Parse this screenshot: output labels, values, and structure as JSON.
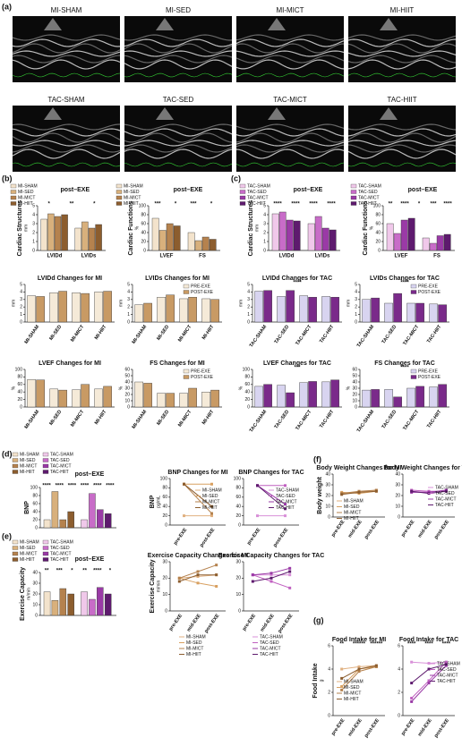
{
  "panel_labels": [
    "(a)",
    "(b)",
    "(c)",
    "(d)",
    "(e)",
    "(f)",
    "(g)"
  ],
  "echo_images": [
    "MI-SHAM",
    "MI-SED",
    "MI-MICT",
    "MI-HIIT",
    "TAC-SHAM",
    "TAC-SED",
    "TAC-MICT",
    "TAC-HIIT"
  ],
  "chart_data": [
    {
      "type": "bar",
      "title": "post–EXE",
      "ylabel": "Cardiac Structures",
      "yunit": "mm",
      "categories": [
        "LVIDd",
        "LVIDs"
      ],
      "ylim": [
        0,
        5
      ],
      "yticks": [
        0,
        1,
        2,
        3,
        4,
        5
      ],
      "annotations": [
        "*",
        "**",
        "*"
      ],
      "series": [
        {
          "name": "MI-SHAM",
          "color": "#f3e3cc",
          "values": [
            3.5,
            2.5
          ]
        },
        {
          "name": "MI-SED",
          "color": "#d8b07c",
          "values": [
            4.1,
            3.2
          ]
        },
        {
          "name": "MI-MICT",
          "color": "#b5824e",
          "values": [
            3.8,
            2.5
          ]
        },
        {
          "name": "MI-HIIT",
          "color": "#8c5d2e",
          "values": [
            4.0,
            2.9
          ]
        }
      ]
    },
    {
      "type": "bar",
      "title": "post–EXE",
      "ylabel": "Cardiac Functions",
      "yunit": "%",
      "categories": [
        "LVEF",
        "FS"
      ],
      "ylim": [
        0,
        100
      ],
      "yticks": [
        0,
        20,
        40,
        60,
        80,
        100
      ],
      "annotations": [
        "***",
        "*",
        "***",
        "*"
      ],
      "series": [
        {
          "name": "MI-SHAM",
          "color": "#f3e3cc",
          "values": [
            72,
            40
          ]
        },
        {
          "name": "MI-SED",
          "color": "#d8b07c",
          "values": [
            45,
            22
          ]
        },
        {
          "name": "MI-MICT",
          "color": "#b5824e",
          "values": [
            60,
            30
          ]
        },
        {
          "name": "MI-HIIT",
          "color": "#8c5d2e",
          "values": [
            55,
            25
          ]
        }
      ]
    },
    {
      "type": "bar",
      "title": "post–EXE",
      "ylabel": "Cardiac Structures",
      "yunit": "mm",
      "categories": [
        "LVIDd",
        "LVIDs"
      ],
      "ylim": [
        0,
        5
      ],
      "yticks": [
        0,
        1,
        2,
        3,
        4,
        5
      ],
      "annotations": [
        "****",
        "****",
        "****",
        "****"
      ],
      "series": [
        {
          "name": "TAC-SHAM",
          "color": "#f0c8ea",
          "values": [
            4.1,
            3.0
          ]
        },
        {
          "name": "TAC-SED",
          "color": "#c86cc8",
          "values": [
            4.3,
            3.8
          ]
        },
        {
          "name": "TAC-MICT",
          "color": "#9a3aa6",
          "values": [
            3.4,
            2.5
          ]
        },
        {
          "name": "TAC-HIIT",
          "color": "#5e1a6e",
          "values": [
            3.3,
            2.3
          ]
        }
      ]
    },
    {
      "type": "bar",
      "title": "post–EXE",
      "ylabel": "Cardiac Functions",
      "yunit": "%",
      "categories": [
        "LVEF",
        "FS"
      ],
      "ylim": [
        0,
        100
      ],
      "yticks": [
        0,
        20,
        40,
        60,
        80,
        100
      ],
      "annotations": [
        "**",
        "****",
        "*",
        "***",
        "****"
      ],
      "series": [
        {
          "name": "TAC-SHAM",
          "color": "#f0c8ea",
          "values": [
            60,
            28
          ]
        },
        {
          "name": "TAC-SED",
          "color": "#c86cc8",
          "values": [
            38,
            16
          ]
        },
        {
          "name": "TAC-MICT",
          "color": "#9a3aa6",
          "values": [
            68,
            33
          ]
        },
        {
          "name": "TAC-HIIT",
          "color": "#5e1a6e",
          "values": [
            72,
            36
          ]
        }
      ]
    },
    {
      "type": "bar",
      "title": "LVIDd Changes for MI",
      "yunit": "mm",
      "categories": [
        "MI-SHAM",
        "MI-SED",
        "MI-MICT",
        "MI-HIIT"
      ],
      "ylim": [
        0,
        5
      ],
      "yticks": [
        0,
        1,
        2,
        3,
        4,
        5
      ],
      "series": [
        {
          "name": "PRE-EXE",
          "color": "#f5ead8",
          "values": [
            3.5,
            3.9,
            3.9,
            4.0
          ]
        },
        {
          "name": "POST-EXE",
          "color": "#c89a64",
          "values": [
            3.4,
            4.1,
            3.8,
            4.1
          ]
        }
      ]
    },
    {
      "type": "bar",
      "title": "LVIDs Changes for MI",
      "yunit": "mm",
      "categories": [
        "MI-SHAM",
        "MI-SED",
        "MI-MICT",
        "MI-HIIT"
      ],
      "ylim": [
        0,
        5
      ],
      "yticks": [
        0,
        1,
        2,
        3,
        4,
        5
      ],
      "series": [
        {
          "name": "PRE-EXE",
          "color": "#f5ead8",
          "values": [
            2.3,
            3.3,
            3.1,
            3.1
          ]
        },
        {
          "name": "POST-EXE",
          "color": "#c89a64",
          "values": [
            2.5,
            3.6,
            3.3,
            3.0
          ]
        }
      ]
    },
    {
      "type": "bar",
      "title": "LVIDd Changes for TAC",
      "yunit": "mm",
      "categories": [
        "TAC-SHAM",
        "TAC-SED",
        "TAC-MICT",
        "TAC-HIIT"
      ],
      "ylim": [
        0,
        5
      ],
      "yticks": [
        0,
        1,
        2,
        3,
        4,
        5
      ],
      "annotations": [
        "****"
      ],
      "series": [
        {
          "name": "PRE-EXE",
          "color": "#d8d4f0",
          "values": [
            4.1,
            3.4,
            3.5,
            3.4
          ]
        },
        {
          "name": "POST-EXE",
          "color": "#7a2a8a",
          "values": [
            4.2,
            4.2,
            3.3,
            3.3
          ]
        }
      ]
    },
    {
      "type": "bar",
      "title": "LVIDs Changes for TAC",
      "yunit": "mm",
      "categories": [
        "TAC-SHAM",
        "TAC-SED",
        "TAC-MICT",
        "TAC-HIIT"
      ],
      "ylim": [
        0,
        5
      ],
      "yticks": [
        0,
        1,
        2,
        3,
        4,
        5
      ],
      "annotations": [
        "****"
      ],
      "series": [
        {
          "name": "PRE-EXE",
          "color": "#d8d4f0",
          "values": [
            3.0,
            2.5,
            2.5,
            2.4
          ]
        },
        {
          "name": "POST-EXE",
          "color": "#7a2a8a",
          "values": [
            3.2,
            3.8,
            2.5,
            2.3
          ]
        }
      ]
    },
    {
      "type": "bar",
      "title": "LVEF Changes for MI",
      "yunit": "%",
      "categories": [
        "MI-SHAM",
        "MI-SED",
        "MI-MICT",
        "MI-HIIT"
      ],
      "ylim": [
        0,
        100
      ],
      "yticks": [
        0,
        20,
        40,
        60,
        80,
        100
      ],
      "series": [
        {
          "name": "PRE-EXE",
          "color": "#f5ead8",
          "values": [
            73,
            48,
            46,
            48
          ]
        },
        {
          "name": "POST-EXE",
          "color": "#c89a64",
          "values": [
            72,
            45,
            60,
            55
          ]
        }
      ]
    },
    {
      "type": "bar",
      "title": "FS Changes for MI",
      "yunit": "%",
      "categories": [
        "MI-SHAM",
        "MI-SED",
        "MI-MICT",
        "MI-HIIT"
      ],
      "ylim": [
        0,
        60
      ],
      "yticks": [
        0,
        10,
        20,
        30,
        40,
        50,
        60
      ],
      "series": [
        {
          "name": "PRE-EXE",
          "color": "#f5ead8",
          "values": [
            40,
            22,
            22,
            24
          ]
        },
        {
          "name": "POST-EXE",
          "color": "#c89a64",
          "values": [
            38,
            22,
            30,
            27
          ]
        }
      ]
    },
    {
      "type": "bar",
      "title": "LVEF Changes for TAC",
      "yunit": "%",
      "categories": [
        "TAC-SHAM",
        "TAC-SED",
        "TAC-MICT",
        "TAC-HIIT"
      ],
      "ylim": [
        0,
        100
      ],
      "yticks": [
        0,
        20,
        40,
        60,
        80,
        100
      ],
      "annotations": [
        "***"
      ],
      "series": [
        {
          "name": "PRE-EXE",
          "color": "#d8d4f0",
          "values": [
            55,
            58,
            65,
            67
          ]
        },
        {
          "name": "POST-EXE",
          "color": "#7a2a8a",
          "values": [
            60,
            38,
            68,
            72
          ]
        }
      ]
    },
    {
      "type": "bar",
      "title": "FS Changes for TAC",
      "yunit": "%",
      "categories": [
        "TAC-SHAM",
        "TAC-SED",
        "TAC-MICT",
        "TAC-HIIT"
      ],
      "ylim": [
        0,
        60
      ],
      "yticks": [
        0,
        10,
        20,
        30,
        40,
        50,
        60
      ],
      "annotations": [
        "****"
      ],
      "series": [
        {
          "name": "PRE-EXE",
          "color": "#d8d4f0",
          "values": [
            27,
            28,
            30,
            32
          ]
        },
        {
          "name": "POST-EXE",
          "color": "#7a2a8a",
          "values": [
            28,
            16,
            33,
            36
          ]
        }
      ]
    },
    {
      "type": "bar",
      "title": "post–EXE",
      "ylabel": "BNP",
      "categories": [
        "MI-SHAM",
        "MI-SED",
        "MI-MICT",
        "MI-HIIT",
        "TAC-SHAM",
        "TAC-SED",
        "TAC-MICT",
        "TAC-HIIT"
      ],
      "values": [
        20,
        90,
        20,
        40,
        20,
        85,
        45,
        35
      ],
      "colors": [
        "#f3e3cc",
        "#d8b07c",
        "#b5824e",
        "#8c5d2e",
        "#f0c8ea",
        "#c86cc8",
        "#9a3aa6",
        "#5e1a6e"
      ],
      "ylim": [
        0,
        100
      ],
      "yticks": [
        0,
        20,
        40,
        60,
        80,
        100
      ],
      "annotations": [
        "****",
        "****",
        "****",
        "****",
        "****",
        "****"
      ]
    },
    {
      "type": "line",
      "title": "BNP Changes for MI",
      "ylabel": "BNP",
      "yunit": "pg/mL",
      "categories": [
        "pre-EXE",
        "post-EXE"
      ],
      "ylim": [
        0,
        100
      ],
      "yticks": [
        0,
        20,
        40,
        60,
        80,
        100
      ],
      "series": [
        {
          "name": "MI-SHAM",
          "color": "#e0b080",
          "values": [
            20,
            20
          ]
        },
        {
          "name": "MI-SED",
          "color": "#d8a060",
          "values": [
            88,
            88
          ]
        },
        {
          "name": "MI-MICT",
          "color": "#b5824e",
          "values": [
            88,
            25
          ]
        },
        {
          "name": "MI-HIIT",
          "color": "#8c5d2e",
          "values": [
            88,
            40
          ]
        }
      ]
    },
    {
      "type": "line",
      "title": "BNP Changes for TAC",
      "categories": [
        "pre-EXE",
        "post-EXE"
      ],
      "ylim": [
        0,
        100
      ],
      "yticks": [
        0,
        20,
        40,
        60,
        80,
        100
      ],
      "series": [
        {
          "name": "TAC-SHAM",
          "color": "#d890d8",
          "values": [
            20,
            20
          ]
        },
        {
          "name": "TAC-SED",
          "color": "#c060c0",
          "values": [
            85,
            85
          ]
        },
        {
          "name": "TAC-MICT",
          "color": "#9a3aa6",
          "values": [
            85,
            45
          ]
        },
        {
          "name": "TAC-HIIT",
          "color": "#5e1a6e",
          "values": [
            85,
            35
          ]
        }
      ]
    },
    {
      "type": "line",
      "title": "Body Weight Changes for MI",
      "ylabel": "Body weight",
      "categories": [
        "pre-EXE",
        "mid-EXE",
        "post-EXE"
      ],
      "ylim": [
        0,
        40
      ],
      "yticks": [
        0,
        10,
        20,
        30,
        40
      ],
      "series": [
        {
          "name": "MI-SHAM",
          "color": "#e0b080",
          "values": [
            22,
            23,
            25
          ]
        },
        {
          "name": "MI-SED",
          "color": "#d8a060",
          "values": [
            23,
            22,
            24
          ]
        },
        {
          "name": "MI-MICT",
          "color": "#b5824e",
          "values": [
            22,
            24,
            25
          ]
        },
        {
          "name": "MI-HIIT",
          "color": "#8c5d2e",
          "values": [
            21,
            23,
            24
          ]
        }
      ]
    },
    {
      "type": "line",
      "title": "Body Weight Changes for TAC",
      "categories": [
        "pre-EXE",
        "mid-EXE",
        "post-EXE"
      ],
      "ylim": [
        0,
        40
      ],
      "yticks": [
        0,
        10,
        20,
        30,
        40
      ],
      "series": [
        {
          "name": "TAC-SHAM",
          "color": "#d890d8",
          "values": [
            24,
            23,
            25
          ]
        },
        {
          "name": "TAC-SED",
          "color": "#c060c0",
          "values": [
            25,
            24,
            24
          ]
        },
        {
          "name": "TAC-MICT",
          "color": "#9a3aa6",
          "values": [
            23,
            23,
            25
          ]
        },
        {
          "name": "TAC-HIIT",
          "color": "#5e1a6e",
          "values": [
            24,
            22,
            24
          ]
        }
      ]
    },
    {
      "type": "bar",
      "title": "post–EXE",
      "ylabel": "Exercise Capacity",
      "yunit": "m/min",
      "categories": [
        "MI-SHAM",
        "MI-SED",
        "MI-MICT",
        "MI-HIIT",
        "TAC-SHAM",
        "TAC-SED",
        "TAC-MICT",
        "TAC-HIIT"
      ],
      "values": [
        22,
        14,
        25,
        20,
        22,
        15,
        26,
        20
      ],
      "colors": [
        "#f3e3cc",
        "#d8b07c",
        "#b5824e",
        "#8c5d2e",
        "#f0c8ea",
        "#c86cc8",
        "#9a3aa6",
        "#5e1a6e"
      ],
      "ylim": [
        0,
        40
      ],
      "yticks": [
        0,
        10,
        20,
        30,
        40
      ],
      "annotations": [
        "**",
        "***",
        "*",
        "**",
        "****",
        "*"
      ]
    },
    {
      "type": "line",
      "title": "Exercise Capacity Changes for MI",
      "ylabel": "Exercise Capacity",
      "yunit": "m/min",
      "categories": [
        "pre-EXE",
        "mid-EXE",
        "post-EXE"
      ],
      "ylim": [
        0,
        30
      ],
      "yticks": [
        0,
        10,
        20,
        30
      ],
      "series": [
        {
          "name": "MI-SHAM",
          "color": "#e0b080",
          "values": [
            20,
            21,
            22
          ]
        },
        {
          "name": "MI-SED",
          "color": "#d8a060",
          "values": [
            20,
            17,
            15
          ]
        },
        {
          "name": "MI-MICT",
          "color": "#b5824e",
          "values": [
            20,
            24,
            28
          ]
        },
        {
          "name": "MI-HIIT",
          "color": "#8c5d2e",
          "values": [
            18,
            22,
            22
          ]
        }
      ]
    },
    {
      "type": "line",
      "title": "Exercise Capacity Changes for TAC",
      "categories": [
        "pre-EXE",
        "mid-EXE",
        "post-EXE"
      ],
      "ylim": [
        0,
        30
      ],
      "yticks": [
        0,
        10,
        20,
        30
      ],
      "series": [
        {
          "name": "TAC-SHAM",
          "color": "#d890d8",
          "values": [
            22,
            22,
            22
          ]
        },
        {
          "name": "TAC-SED",
          "color": "#c060c0",
          "values": [
            22,
            18,
            14
          ]
        },
        {
          "name": "TAC-MICT",
          "color": "#9a3aa6",
          "values": [
            22,
            23,
            26
          ]
        },
        {
          "name": "TAC-HIIT",
          "color": "#5e1a6e",
          "values": [
            18,
            20,
            24
          ]
        }
      ]
    },
    {
      "type": "line",
      "title": "Food Intake for MI",
      "ylabel": "Food Intake",
      "yunit": "g",
      "categories": [
        "pre-EXE",
        "mid-EXE",
        "post-EXE"
      ],
      "ylim": [
        0,
        6
      ],
      "yticks": [
        0,
        2,
        4,
        6
      ],
      "annotations": [
        "**",
        "******",
        "******"
      ],
      "series": [
        {
          "name": "MI-SHAM",
          "color": "#e0b080",
          "values": [
            4,
            4.2,
            4.3
          ]
        },
        {
          "name": "MI-SED",
          "color": "#d8a060",
          "values": [
            2.5,
            4,
            4.2
          ]
        },
        {
          "name": "MI-MICT",
          "color": "#b5824e",
          "values": [
            2.2,
            3.8,
            4.2
          ]
        },
        {
          "name": "MI-HIIT",
          "color": "#8c5d2e",
          "values": [
            3.2,
            4,
            4.3
          ]
        }
      ]
    },
    {
      "type": "line",
      "title": "Food Intake for TAC",
      "categories": [
        "pre-EXE",
        "mid-EXE",
        "post-EXE"
      ],
      "ylim": [
        0,
        6
      ],
      "yticks": [
        0,
        2,
        4,
        6
      ],
      "annotations": [
        "****",
        "****",
        "****"
      ],
      "series": [
        {
          "name": "TAC-SHAM",
          "color": "#d890d8",
          "values": [
            4.6,
            4.5,
            4.6
          ]
        },
        {
          "name": "TAC-SED",
          "color": "#c060c0",
          "values": [
            1.5,
            3,
            4.6
          ]
        },
        {
          "name": "TAC-MICT",
          "color": "#9a3aa6",
          "values": [
            1.2,
            2.8,
            4.3
          ]
        },
        {
          "name": "TAC-HIIT",
          "color": "#5e1a6e",
          "values": [
            2.8,
            4,
            4.4
          ]
        }
      ]
    }
  ]
}
